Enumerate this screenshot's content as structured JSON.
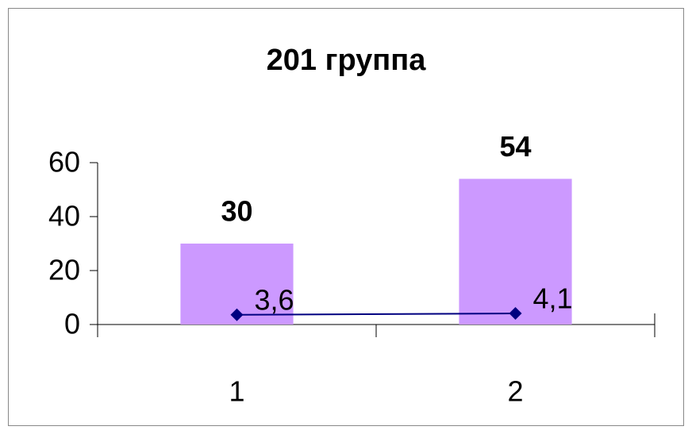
{
  "chart_data": {
    "type": "bar",
    "title": "201 группа",
    "categories": [
      "1",
      "2"
    ],
    "ylim": [
      0,
      60
    ],
    "yticks": [
      0,
      20,
      40,
      60
    ],
    "series": [
      {
        "type": "bar",
        "color": "#cc99ff",
        "values": [
          30,
          54
        ]
      },
      {
        "type": "line",
        "color": "#000080",
        "values": [
          3.6,
          4.1
        ],
        "value_labels": [
          "3,6",
          "4,1"
        ]
      }
    ]
  }
}
